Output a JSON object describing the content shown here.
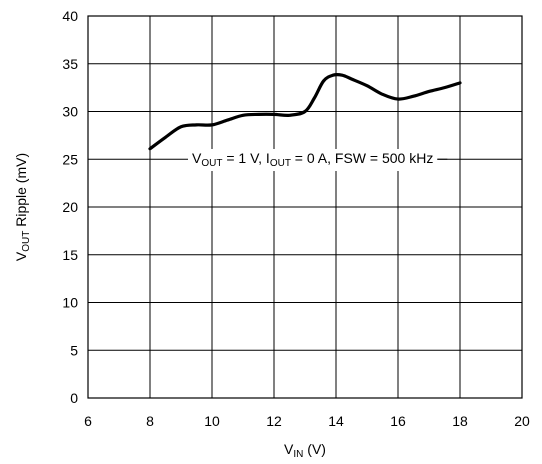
{
  "chart_data": {
    "type": "line",
    "title": "",
    "xlabel": {
      "main": "V",
      "sub": "IN",
      "unit": " (V)"
    },
    "ylabel": {
      "main": "V",
      "sub": "OUT",
      "rest": " Ripple (mV)"
    },
    "xlim": [
      6,
      20
    ],
    "ylim": [
      0,
      40
    ],
    "xticks": [
      6,
      8,
      10,
      12,
      14,
      16,
      18,
      20
    ],
    "yticks": [
      0,
      5,
      10,
      15,
      20,
      25,
      30,
      35,
      40
    ],
    "grid": true,
    "annotation": {
      "parts": [
        {
          "t": "V"
        },
        {
          "t": "OUT",
          "sub": true
        },
        {
          "t": " = 1 V, I"
        },
        {
          "t": "OUT",
          "sub": true
        },
        {
          "t": " = 0 A, FSW = 500 kHz"
        }
      ]
    },
    "series": [
      {
        "color": "#000000",
        "x": [
          8.0,
          8.5,
          9.0,
          9.5,
          10.0,
          10.5,
          11.0,
          11.5,
          12.0,
          12.5,
          13.0,
          13.3,
          13.6,
          13.9,
          14.2,
          14.5,
          15.0,
          15.5,
          16.0,
          16.5,
          17.0,
          17.5,
          18.0
        ],
        "y": [
          26.1,
          27.3,
          28.4,
          28.6,
          28.6,
          29.1,
          29.6,
          29.7,
          29.7,
          29.6,
          30.0,
          31.4,
          33.2,
          33.8,
          33.8,
          33.4,
          32.7,
          31.8,
          31.3,
          31.6,
          32.1,
          32.5,
          33.0
        ]
      }
    ]
  }
}
